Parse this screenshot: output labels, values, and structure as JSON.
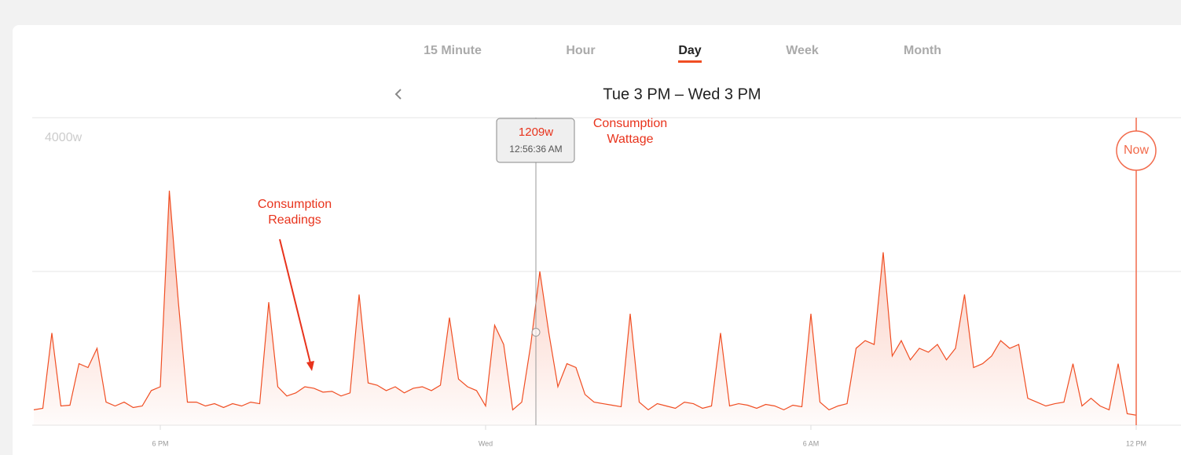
{
  "tabs": {
    "items": [
      "15 Minute",
      "Hour",
      "Day",
      "Week",
      "Month"
    ],
    "active": 2
  },
  "range_title": "Tue 3 PM – Wed 3 PM",
  "annotations": [
    "Consumption Readings",
    "Consumption Wattage"
  ],
  "tooltip": {
    "value": 1209,
    "label": "1209w",
    "time": "12:56:36 AM"
  },
  "now_label": "Now",
  "chart_data": {
    "type": "line",
    "color": "#f04e23",
    "categories": [
      null,
      null,
      null,
      null,
      null,
      null,
      null,
      null,
      null,
      null,
      null,
      null,
      null,
      null,
      "6 PM",
      null,
      null,
      null,
      null,
      null,
      null,
      null,
      null,
      null,
      null,
      null,
      null,
      null,
      null,
      null,
      null,
      null,
      null,
      null,
      null,
      null,
      null,
      null,
      null,
      null,
      null,
      null,
      null,
      null,
      null,
      null,
      null,
      null,
      null,
      null,
      "Wed",
      null,
      null,
      null,
      null,
      null,
      null,
      null,
      null,
      null,
      null,
      null,
      null,
      null,
      null,
      null,
      null,
      null,
      null,
      null,
      null,
      null,
      null,
      null,
      null,
      null,
      null,
      null,
      null,
      null,
      null,
      null,
      null,
      null,
      null,
      null,
      "6 AM",
      null,
      null,
      null,
      null,
      null,
      null,
      null,
      null,
      null,
      null,
      null,
      null,
      null,
      null,
      null,
      null,
      null,
      null,
      null,
      null,
      null,
      null,
      null,
      null,
      null,
      null,
      null,
      null,
      null,
      null,
      null,
      null,
      null,
      null,
      null,
      "12 PM"
    ],
    "values": [
      200,
      220,
      1200,
      250,
      260,
      800,
      750,
      1000,
      300,
      250,
      300,
      230,
      250,
      450,
      500,
      3050,
      1600,
      300,
      300,
      250,
      280,
      230,
      280,
      250,
      300,
      280,
      1600,
      500,
      380,
      420,
      500,
      480,
      430,
      440,
      380,
      420,
      1700,
      550,
      520,
      450,
      500,
      420,
      480,
      500,
      450,
      520,
      1400,
      600,
      500,
      450,
      250,
      1300,
      1050,
      200,
      300,
      1050,
      2000,
      1200,
      500,
      800,
      750,
      400,
      300,
      280,
      260,
      240,
      1450,
      300,
      200,
      280,
      250,
      220,
      300,
      280,
      220,
      250,
      1200,
      250,
      280,
      260,
      220,
      270,
      250,
      200,
      260,
      240,
      1450,
      300,
      200,
      250,
      280,
      1000,
      1100,
      1050,
      2250,
      900,
      1100,
      850,
      1000,
      950,
      1050,
      850,
      1000,
      1700,
      750,
      800,
      900,
      1100,
      1000,
      1050,
      350,
      300,
      250,
      280,
      300,
      800,
      250,
      350,
      250,
      200,
      800,
      150,
      130
    ],
    "ylim": [
      0,
      4000
    ],
    "gridlines": [
      0,
      2000,
      4000
    ],
    "yticks": [
      {
        "value": 4000,
        "label": "4000w"
      }
    ]
  }
}
